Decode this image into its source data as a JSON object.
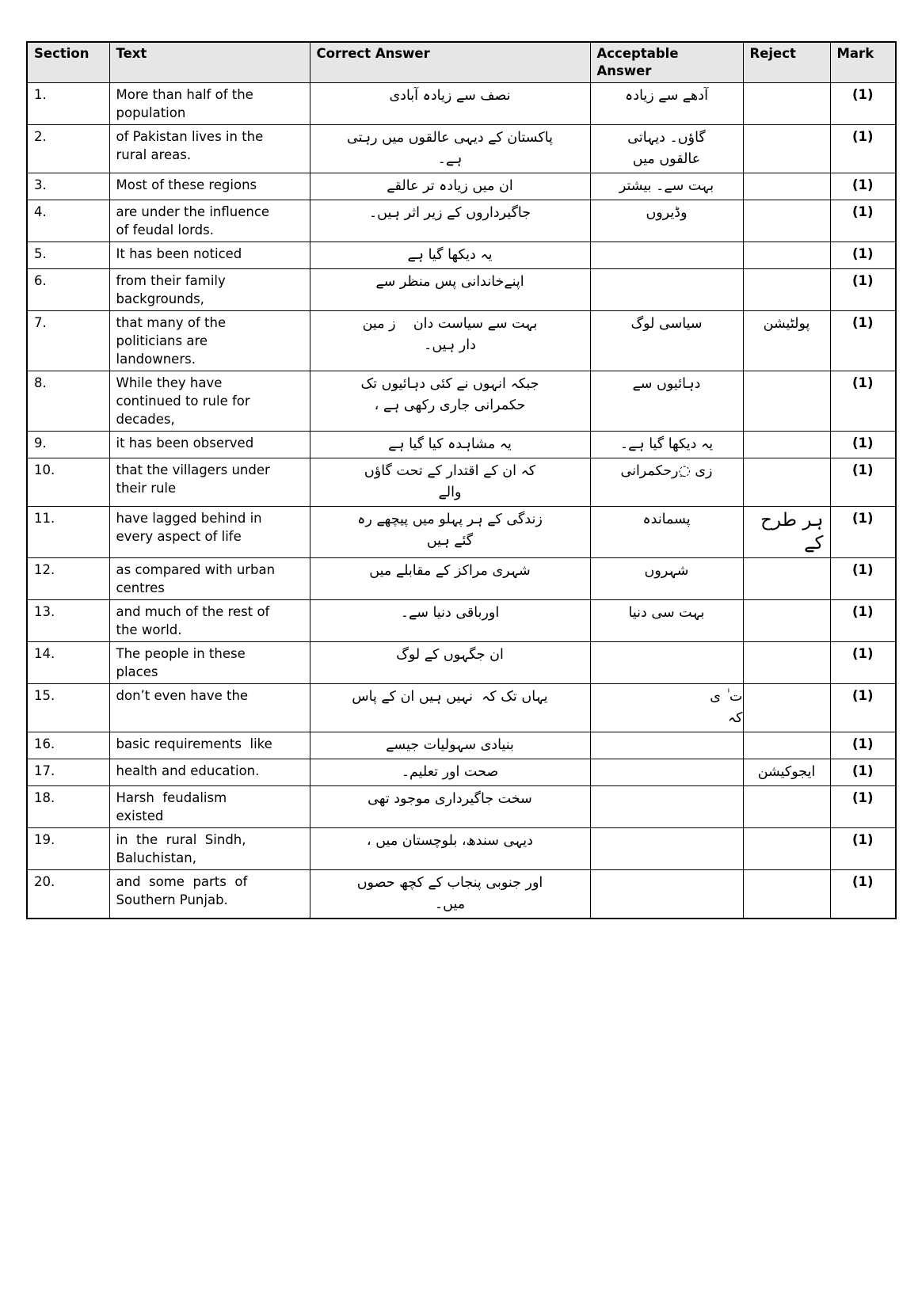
{
  "colors": {
    "header_bg": "#e6e6e6",
    "border": "#000000",
    "page_bg": "#ffffff"
  },
  "table": {
    "headers": {
      "section": "Section",
      "text": "Text",
      "correct": "Correct Answer",
      "acceptable": "Acceptable\nAnswer",
      "reject": "Reject",
      "mark": "Mark"
    },
    "rows": [
      {
        "section": "1.",
        "text": "More than half of the\npopulation",
        "correct": "نصف سے زیادہ آبادی",
        "acceptable": "آدھے سے زیادہ",
        "reject": "",
        "mark": "(1)"
      },
      {
        "section": "2.",
        "text": "of Pakistan lives in the\nrural areas.",
        "correct": "پاکستان کے دیہی عالقوں میں رہتی\nہے۔",
        "acceptable": "گاؤں۔ دیہاتی\nعالقوں میں",
        "reject": "",
        "mark": "(1)"
      },
      {
        "section": "3.",
        "text": "Most of these regions",
        "correct": "ان میں زیادہ تر عالقے",
        "acceptable": "بہت سے۔ بیشتر",
        "reject": "",
        "mark": "(1)"
      },
      {
        "section": "4.",
        "text": "are under the influence\nof feudal lords.",
        "correct": "جاگیرداروں کے زیر اثر ہیں۔",
        "acceptable": "وڈیروں",
        "reject": "",
        "mark": "(1)"
      },
      {
        "section": "5.",
        "text": "It has been noticed",
        "correct": "یہ دیکھا گیا ہے",
        "acceptable": "",
        "reject": "",
        "mark": "(1)"
      },
      {
        "section": "6.",
        "text": "from their family\nbackgrounds,",
        "correct": "اپنےخاندانی پس منظر سے",
        "acceptable": "",
        "reject": "",
        "mark": "(1)"
      },
      {
        "section": "7.",
        "text": "that many of the\npoliticians are\nlandowners.",
        "correct": "بہت سے سیاست دان    ز مین\nدار ہیں۔",
        "acceptable": "سیاسی لوگ",
        "reject": "پولٹیشن",
        "mark": "(1)"
      },
      {
        "section": "8.",
        "text": "While they have\ncontinued to rule for\ndecades,",
        "correct": "جبکہ انہوں نے کئی دہائیوں تک\nحکمرانی جاری رکھی ہے ،",
        "acceptable": "دہائیوں سے",
        "reject": "",
        "mark": "(1)"
      },
      {
        "section": "9.",
        "text": "it has been observed",
        "correct": "یہ مشاہدہ کیا گیا ہے",
        "acceptable": "یہ دیکھا گیا ہے۔",
        "reject": "",
        "mark": "(1)"
      },
      {
        "section": "10.",
        "text": "that the villagers under\ntheir rule",
        "correct": "کہ ان کے اقتدار کے تحت گاؤں\nوالے",
        "acceptable": "زی ◌ِرحکمرانی",
        "reject": "",
        "mark": "(1)"
      },
      {
        "section": "11.",
        "text": "have lagged behind in\nevery aspect of life",
        "correct": "زندگی کے ہر پہلو میں پیچھے رہ\nگئے ہیں",
        "acceptable": "پسماندہ",
        "reject": "ہر طرح\nکے",
        "mark": "(1)"
      },
      {
        "section": "12.",
        "text": "as compared with urban\ncentres",
        "correct": "شہری مراکز کے مقابلے میں",
        "acceptable": "شہروں",
        "reject": "",
        "mark": "(1)"
      },
      {
        "section": "13.",
        "text": "and much of the rest of\nthe world.",
        "correct": "اورباقی دنیا سے۔",
        "acceptable": "بہت سی دنیا",
        "reject": "",
        "mark": "(1)"
      },
      {
        "section": "14.",
        "text": "The people in these\nplaces",
        "correct": "ان جگہوں کے لوگ",
        "acceptable": "",
        "reject": "",
        "mark": "(1)"
      },
      {
        "section": "15.",
        "text": "don’t even have the",
        "correct": "یہاں تک کہ  نہیں ہیں ان کے پاس",
        "acceptable": "ت ٰ ی\nکہ",
        "reject": "",
        "mark": "(1)"
      },
      {
        "section": "16.",
        "text": "basic requirements  like",
        "correct": "بنیادی سہولیات جیسے",
        "acceptable": "",
        "reject": "",
        "mark": "(1)"
      },
      {
        "section": "17.",
        "text": "health and education.",
        "correct": "صحت اور تعلیم۔",
        "acceptable": "",
        "reject": "ایجوکیشن",
        "mark": "(1)"
      },
      {
        "section": "18.",
        "text": "Harsh  feudalism\nexisted",
        "correct": "سخت جاگیرداری موجود تھی",
        "acceptable": "",
        "reject": "",
        "mark": "(1)"
      },
      {
        "section": "19.",
        "text": "in  the  rural  Sindh,\nBaluchistan,",
        "correct": "دیہی سندھ، بلوچستان میں ،",
        "acceptable": "",
        "reject": "",
        "mark": "(1)"
      },
      {
        "section": "20.",
        "text": "and  some  parts  of\nSouthern Punjab.",
        "correct": "اور جنوبی پنجاب کے کچھ حصوں\nمیں۔",
        "acceptable": "",
        "reject": "",
        "mark": "(1)"
      }
    ]
  }
}
